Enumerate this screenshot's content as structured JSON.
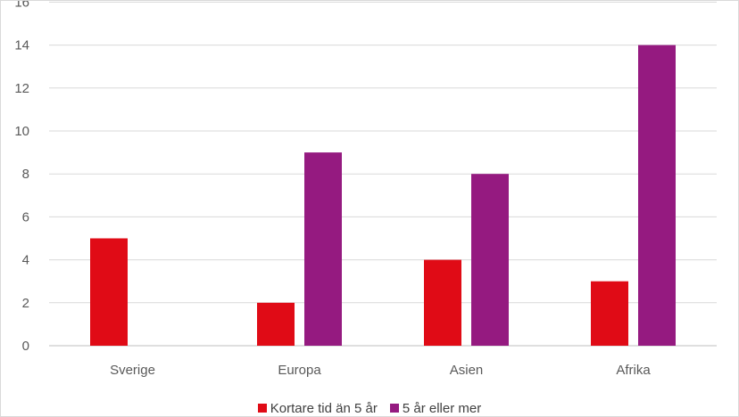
{
  "chart_data": {
    "type": "bar",
    "categories": [
      "Sverige",
      "Europa",
      "Asien",
      "Afrika"
    ],
    "series": [
      {
        "name": "Kortare tid än 5 år",
        "values": [
          5,
          2,
          4,
          3
        ],
        "color": "#e00b16"
      },
      {
        "name": "5 år eller mer",
        "values": [
          0,
          9,
          8,
          14
        ],
        "color": "#951a80"
      }
    ],
    "ylim": [
      0,
      16
    ],
    "yticks": [
      "0",
      "2",
      "4",
      "6",
      "8",
      "10",
      "12",
      "14",
      "16"
    ],
    "grid": true,
    "legend": "bottom"
  }
}
